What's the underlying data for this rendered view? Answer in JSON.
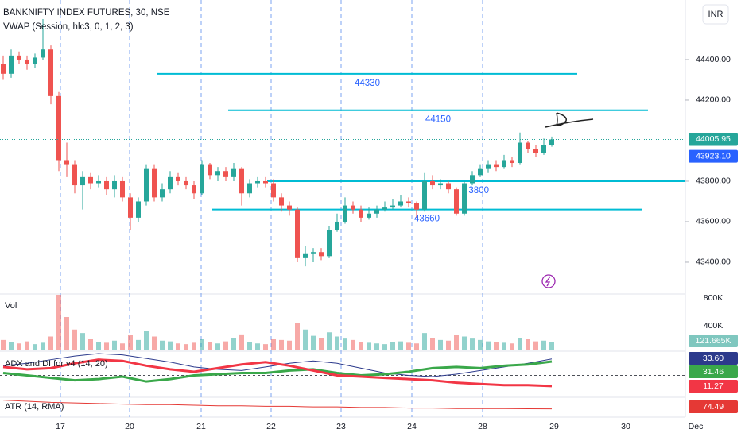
{
  "chart_data": [
    {
      "type": "candlestick",
      "title": "BANKNIFTY INDEX FUTURES, 30, NSE",
      "subtitle": "VWAP (Session, hlc3, 0, 1, 2, 3)",
      "currency": "INR",
      "up_color": "#26a69a",
      "down_color": "#ef5350",
      "level_color": "#00bcd4",
      "date_labels": [
        "17",
        "20",
        "21",
        "22",
        "23",
        "24",
        "28",
        "29",
        "30",
        "Dec"
      ],
      "open": [
        44380,
        44330,
        44420,
        44400,
        44380,
        44410,
        44450,
        44220,
        43900,
        43880,
        43780,
        43820,
        43790,
        43800,
        43760,
        43800,
        43720,
        43620,
        43700,
        43860,
        43720,
        43760,
        43820,
        43800,
        43780,
        43740,
        43880,
        43830,
        43850,
        43820,
        43860,
        43740,
        43790,
        43800,
        43790,
        43720,
        43680,
        43660,
        43420,
        43440,
        43450,
        43430,
        43560,
        43600,
        43680,
        43660,
        43620,
        43640,
        43660,
        43670,
        43680,
        43700,
        43690,
        43660,
        43800,
        43780,
        43790,
        43760,
        43640,
        43790,
        43830,
        43860,
        43880,
        43870,
        43900,
        43890,
        43990,
        43960,
        43940,
        43980
      ],
      "high": [
        44420,
        44450,
        44440,
        44420,
        44430,
        44600,
        44470,
        44240,
        43990,
        43900,
        43850,
        43840,
        43830,
        43820,
        43830,
        43820,
        43740,
        43720,
        43880,
        43880,
        43790,
        43850,
        43840,
        43820,
        43800,
        43900,
        43890,
        43870,
        43870,
        43890,
        43870,
        43810,
        43820,
        43820,
        43810,
        43740,
        43700,
        43670,
        43480,
        43470,
        43470,
        43580,
        43640,
        43720,
        43700,
        43680,
        43670,
        43680,
        43700,
        43710,
        43730,
        43720,
        43700,
        43840,
        43830,
        43810,
        43800,
        43770,
        43800,
        43850,
        43880,
        43900,
        43900,
        43930,
        43920,
        44040,
        44000,
        43980,
        44010,
        44020
      ],
      "low": [
        44300,
        44310,
        44380,
        44350,
        44360,
        44400,
        44180,
        43850,
        43820,
        43740,
        43660,
        43760,
        43770,
        43730,
        43720,
        43700,
        43560,
        43600,
        43680,
        43700,
        43700,
        43740,
        43780,
        43760,
        43710,
        43730,
        43810,
        43800,
        43800,
        43800,
        43680,
        43720,
        43770,
        43770,
        43700,
        43650,
        43630,
        43400,
        43380,
        43400,
        43410,
        43420,
        43550,
        43590,
        43640,
        43600,
        43610,
        43620,
        43650,
        43660,
        43670,
        43670,
        43620,
        43650,
        43760,
        43760,
        43740,
        43630,
        43630,
        43780,
        43820,
        43840,
        43850,
        43860,
        43870,
        43880,
        43940,
        43920,
        43930,
        43970
      ],
      "close": [
        44330,
        44420,
        44400,
        44380,
        44410,
        44450,
        44220,
        43900,
        43880,
        43780,
        43820,
        43790,
        43800,
        43760,
        43800,
        43720,
        43620,
        43700,
        43860,
        43720,
        43760,
        43820,
        43800,
        43780,
        43740,
        43880,
        43830,
        43850,
        43820,
        43860,
        43740,
        43790,
        43800,
        43790,
        43720,
        43680,
        43660,
        43420,
        43440,
        43450,
        43430,
        43560,
        43600,
        43680,
        43660,
        43620,
        43640,
        43660,
        43670,
        43680,
        43700,
        43690,
        43660,
        43800,
        43780,
        43790,
        43760,
        43640,
        43790,
        43830,
        43860,
        43880,
        43870,
        43900,
        43890,
        43990,
        43960,
        43940,
        43980,
        44005.95
      ],
      "levels": [
        44330,
        44150,
        43800,
        43660
      ],
      "vwap": {
        "value": 43923.1,
        "label": "43923.10"
      },
      "ylim": [
        43243,
        44694
      ],
      "yticks": [
        {
          "value": 44400,
          "label": "44400.00"
        },
        {
          "value": 44200,
          "label": "44200.00"
        },
        {
          "value": 43800,
          "label": "43800.00"
        },
        {
          "value": 43600,
          "label": "43600.00"
        },
        {
          "value": 43400,
          "label": "43400.00"
        }
      ]
    },
    {
      "type": "bar",
      "title": "Vol",
      "values": [
        150000,
        120000,
        100000,
        130000,
        90000,
        110000,
        200000,
        800000,
        480000,
        300000,
        250000,
        160000,
        120000,
        110000,
        140000,
        100000,
        220000,
        150000,
        280000,
        200000,
        140000,
        130000,
        100000,
        90000,
        110000,
        160000,
        120000,
        100000,
        130000,
        180000,
        230000,
        120000,
        100000,
        90000,
        160000,
        150000,
        140000,
        390000,
        300000,
        210000,
        180000,
        260000,
        200000,
        170000,
        150000,
        120000,
        110000,
        100000,
        90000,
        120000,
        130000,
        110000,
        100000,
        250000,
        180000,
        150000,
        140000,
        220000,
        200000,
        170000,
        150000,
        130000,
        120000,
        110000,
        100000,
        180000,
        160000,
        130000,
        140000,
        121665
      ],
      "last_value_label": "121.665K",
      "ylim": [
        0,
        800000
      ],
      "yticks": [
        {
          "value": 800000,
          "label": "800K"
        },
        {
          "value": 400000,
          "label": "400K"
        }
      ]
    },
    {
      "type": "line",
      "title": "ADX and DI for v4 (14, 20)",
      "ylim": [
        2,
        40
      ],
      "level": 20,
      "series": [
        {
          "color": "#2c3a8c",
          "last_value_label": "33.60",
          "values": [
            28,
            30,
            33,
            36,
            38,
            37,
            34,
            31,
            27,
            25,
            24,
            27,
            30,
            32,
            30,
            26,
            22,
            20,
            19,
            21,
            24,
            27,
            30,
            33.6
          ]
        },
        {
          "color": "#3aa84a",
          "values": [
            22,
            20,
            18,
            16,
            17,
            19,
            15,
            17,
            20,
            21,
            22,
            22,
            24,
            25,
            22,
            20,
            21,
            23,
            26,
            27,
            26,
            28,
            29,
            31.46
          ]
        },
        {
          "color": "#f23645",
          "values": [
            27,
            25,
            26,
            30,
            33,
            32,
            28,
            25,
            23,
            26,
            29,
            31,
            28,
            24,
            20,
            19,
            18,
            17,
            16,
            14,
            13,
            12,
            12,
            11.27
          ]
        }
      ]
    },
    {
      "type": "line",
      "title": "ATR (14, RMA)",
      "ylim": [
        60,
        95
      ],
      "series": [
        {
          "color": "#e53935",
          "values": [
            90,
            88,
            86,
            85,
            84,
            83,
            82,
            82,
            81,
            80,
            80,
            79,
            79,
            78,
            78,
            77,
            77,
            76,
            76,
            75,
            75,
            75,
            74.7,
            74.49
          ]
        }
      ]
    }
  ]
}
